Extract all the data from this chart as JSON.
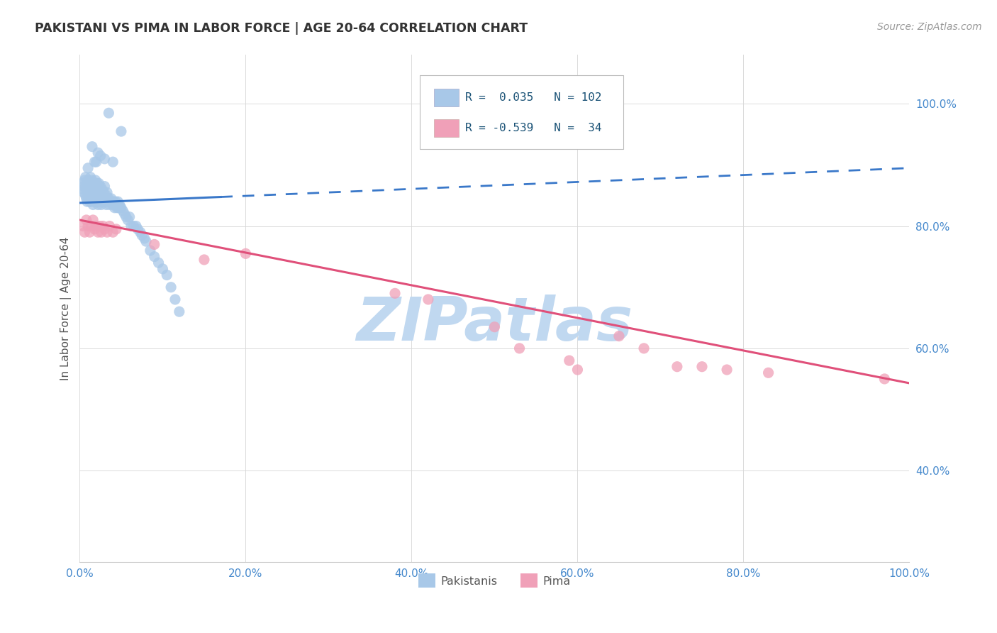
{
  "title": "PAKISTANI VS PIMA IN LABOR FORCE | AGE 20-64 CORRELATION CHART",
  "source_text": "Source: ZipAtlas.com",
  "ylabel": "In Labor Force | Age 20-64",
  "xlim": [
    0.0,
    1.0
  ],
  "ylim": [
    0.25,
    1.08
  ],
  "xticks": [
    0.0,
    0.2,
    0.4,
    0.6,
    0.8,
    1.0
  ],
  "xticklabels": [
    "0.0%",
    "20.0%",
    "40.0%",
    "60.0%",
    "80.0%",
    "100.0%"
  ],
  "yticks": [
    0.4,
    0.6,
    0.8,
    1.0
  ],
  "yticklabels": [
    "40.0%",
    "60.0%",
    "80.0%",
    "100.0%"
  ],
  "blue_color": "#a8c8e8",
  "pink_color": "#f0a0b8",
  "blue_line_color": "#3a78c9",
  "pink_line_color": "#e0507a",
  "watermark_color": "#c0d8f0",
  "grid_color": "#d8d8d8",
  "pakistanis_scatter_x": [
    0.003,
    0.004,
    0.005,
    0.005,
    0.006,
    0.007,
    0.007,
    0.008,
    0.008,
    0.009,
    0.009,
    0.01,
    0.01,
    0.011,
    0.011,
    0.012,
    0.012,
    0.013,
    0.013,
    0.014,
    0.014,
    0.015,
    0.015,
    0.016,
    0.016,
    0.017,
    0.017,
    0.018,
    0.018,
    0.019,
    0.019,
    0.02,
    0.02,
    0.021,
    0.021,
    0.022,
    0.022,
    0.023,
    0.024,
    0.024,
    0.025,
    0.025,
    0.026,
    0.026,
    0.027,
    0.028,
    0.028,
    0.029,
    0.03,
    0.03,
    0.031,
    0.032,
    0.032,
    0.033,
    0.034,
    0.035,
    0.036,
    0.037,
    0.038,
    0.039,
    0.04,
    0.041,
    0.042,
    0.043,
    0.044,
    0.045,
    0.046,
    0.047,
    0.048,
    0.049,
    0.05,
    0.052,
    0.054,
    0.056,
    0.058,
    0.06,
    0.062,
    0.065,
    0.068,
    0.07,
    0.073,
    0.075,
    0.078,
    0.08,
    0.085,
    0.09,
    0.095,
    0.1,
    0.105,
    0.11,
    0.115,
    0.12,
    0.022,
    0.015,
    0.03,
    0.01,
    0.02,
    0.025,
    0.018,
    0.04,
    0.035,
    0.05
  ],
  "pakistanis_scatter_y": [
    0.87,
    0.86,
    0.865,
    0.855,
    0.875,
    0.85,
    0.88,
    0.86,
    0.845,
    0.87,
    0.84,
    0.875,
    0.855,
    0.86,
    0.845,
    0.87,
    0.84,
    0.88,
    0.855,
    0.865,
    0.84,
    0.875,
    0.85,
    0.86,
    0.835,
    0.87,
    0.845,
    0.86,
    0.84,
    0.875,
    0.85,
    0.865,
    0.84,
    0.87,
    0.845,
    0.855,
    0.835,
    0.87,
    0.855,
    0.84,
    0.865,
    0.845,
    0.85,
    0.835,
    0.86,
    0.845,
    0.84,
    0.855,
    0.84,
    0.865,
    0.845,
    0.85,
    0.835,
    0.855,
    0.84,
    0.845,
    0.835,
    0.84,
    0.845,
    0.84,
    0.835,
    0.84,
    0.83,
    0.84,
    0.835,
    0.83,
    0.84,
    0.83,
    0.835,
    0.83,
    0.83,
    0.825,
    0.82,
    0.815,
    0.81,
    0.815,
    0.8,
    0.8,
    0.8,
    0.795,
    0.79,
    0.785,
    0.78,
    0.775,
    0.76,
    0.75,
    0.74,
    0.73,
    0.72,
    0.7,
    0.68,
    0.66,
    0.92,
    0.93,
    0.91,
    0.895,
    0.905,
    0.915,
    0.905,
    0.905,
    0.985,
    0.955
  ],
  "pima_scatter_x": [
    0.004,
    0.006,
    0.008,
    0.01,
    0.012,
    0.014,
    0.016,
    0.018,
    0.02,
    0.022,
    0.024,
    0.026,
    0.028,
    0.03,
    0.033,
    0.036,
    0.04,
    0.044,
    0.09,
    0.15,
    0.2,
    0.38,
    0.42,
    0.5,
    0.53,
    0.59,
    0.6,
    0.65,
    0.68,
    0.72,
    0.75,
    0.78,
    0.83,
    0.97
  ],
  "pima_scatter_y": [
    0.8,
    0.79,
    0.81,
    0.8,
    0.79,
    0.8,
    0.81,
    0.795,
    0.8,
    0.79,
    0.8,
    0.79,
    0.8,
    0.795,
    0.79,
    0.8,
    0.79,
    0.795,
    0.77,
    0.745,
    0.755,
    0.69,
    0.68,
    0.635,
    0.6,
    0.58,
    0.565,
    0.62,
    0.6,
    0.57,
    0.57,
    0.565,
    0.56,
    0.55
  ],
  "blue_trendline_x": [
    0.0,
    1.0
  ],
  "blue_trendline_y": [
    0.838,
    0.895
  ],
  "pink_trendline_x": [
    0.0,
    1.0
  ],
  "pink_trendline_y": [
    0.81,
    0.543
  ],
  "legend_r1": "R =  0.035",
  "legend_n1": "N = 102",
  "legend_r2": "R = -0.539",
  "legend_n2": "N =  34",
  "legend_text_color": "#1a5276",
  "tick_color": "#4488cc"
}
